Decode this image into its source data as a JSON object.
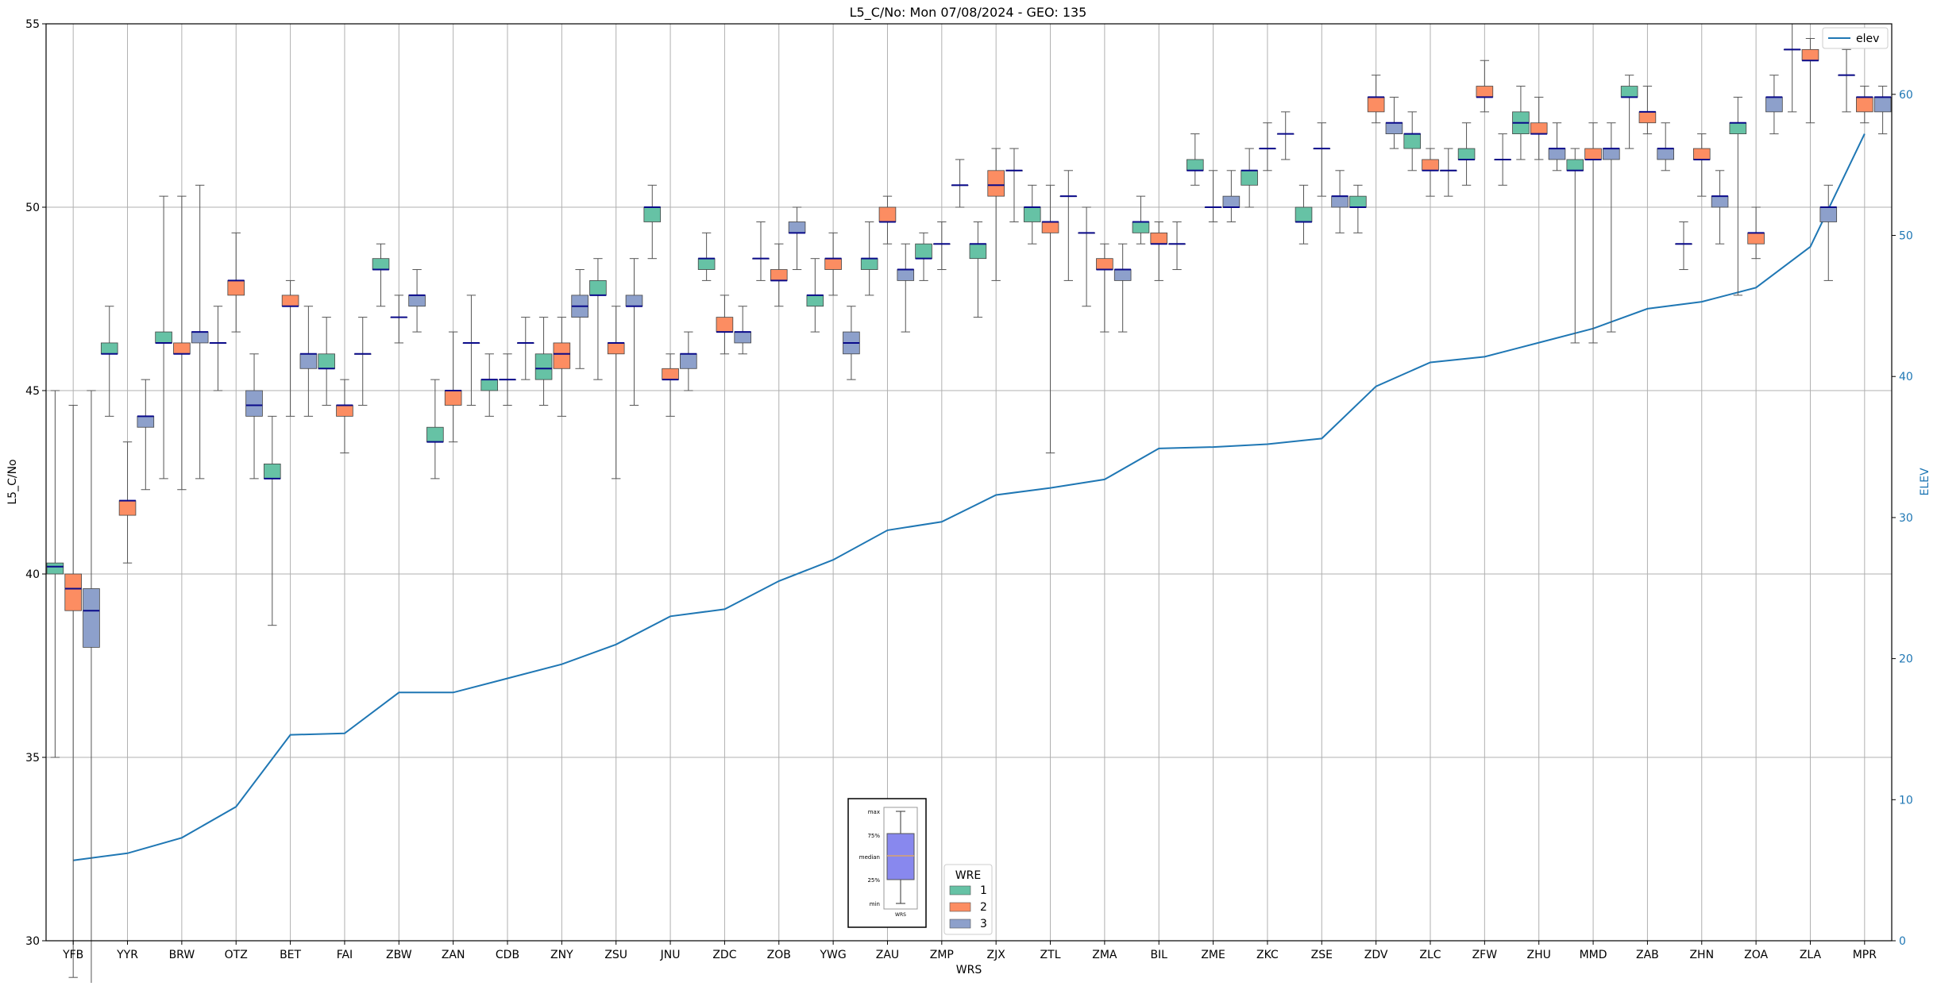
{
  "chart_data": {
    "type": "box",
    "title": "L5_C/No: Mon 07/08/2024 - GEO: 135",
    "xlabel": "WRS",
    "ylabel": "L5_C/No",
    "y2label": "ELEV",
    "ylim": [
      30,
      55
    ],
    "y2lim": [
      0,
      65
    ],
    "yticks": [
      30,
      35,
      40,
      45,
      50,
      55
    ],
    "y2ticks": [
      0,
      10,
      20,
      30,
      40,
      50,
      60
    ],
    "grid": true,
    "categories": [
      "YFB",
      "YYR",
      "BRW",
      "OTZ",
      "BET",
      "FAI",
      "ZBW",
      "ZAN",
      "CDB",
      "ZNY",
      "ZSU",
      "JNU",
      "ZDC",
      "ZOB",
      "YWG",
      "ZAU",
      "ZMP",
      "ZJX",
      "ZTL",
      "ZMA",
      "BIL",
      "ZME",
      "ZKC",
      "ZSE",
      "ZDV",
      "ZLC",
      "ZFW",
      "ZHU",
      "MMD",
      "ZAB",
      "ZHN",
      "ZOA",
      "ZLA",
      "MPR"
    ],
    "box_stats_order": [
      "min",
      "q1",
      "median",
      "q3",
      "max"
    ],
    "series": [
      {
        "name": "1",
        "color": "#66c2a5",
        "boxes": [
          [
            35.0,
            40.0,
            40.2,
            40.3,
            45.0
          ],
          [
            44.3,
            46.0,
            46.0,
            46.3,
            47.3
          ],
          [
            42.6,
            46.3,
            46.3,
            46.6,
            50.3
          ],
          [
            45.0,
            46.3,
            46.3,
            46.3,
            47.3
          ],
          [
            38.6,
            42.6,
            42.6,
            43.0,
            44.3
          ],
          [
            44.6,
            45.6,
            45.6,
            46.0,
            47.0
          ],
          [
            47.3,
            48.3,
            48.3,
            48.6,
            49.0
          ],
          [
            42.6,
            43.6,
            43.6,
            44.0,
            45.3
          ],
          [
            44.3,
            45.0,
            45.3,
            45.3,
            46.0
          ],
          [
            44.6,
            45.3,
            45.6,
            46.0,
            47.0
          ],
          [
            45.3,
            47.6,
            47.6,
            48.0,
            48.6
          ],
          [
            48.6,
            49.6,
            50.0,
            50.0,
            50.6
          ],
          [
            48.0,
            48.3,
            48.6,
            48.6,
            49.3
          ],
          [
            48.0,
            48.6,
            48.6,
            48.6,
            49.6
          ],
          [
            46.6,
            47.3,
            47.6,
            47.6,
            48.6
          ],
          [
            47.6,
            48.3,
            48.6,
            48.6,
            49.6
          ],
          [
            48.0,
            48.6,
            48.6,
            49.0,
            49.3
          ],
          [
            47.0,
            48.6,
            49.0,
            49.0,
            49.6
          ],
          [
            49.0,
            49.6,
            50.0,
            50.0,
            50.6
          ],
          [
            47.3,
            49.3,
            49.3,
            49.3,
            50.0
          ],
          [
            49.0,
            49.3,
            49.6,
            49.6,
            50.3
          ],
          [
            50.6,
            51.0,
            51.0,
            51.3,
            52.0
          ],
          [
            50.0,
            50.6,
            51.0,
            51.0,
            51.6
          ],
          [
            49.0,
            49.6,
            49.6,
            50.0,
            50.6
          ],
          [
            49.3,
            50.0,
            50.0,
            50.3,
            50.6
          ],
          [
            51.0,
            51.6,
            52.0,
            52.0,
            52.6
          ],
          [
            50.6,
            51.3,
            51.3,
            51.6,
            52.3
          ],
          [
            51.3,
            52.0,
            52.3,
            52.6,
            53.3
          ],
          [
            46.3,
            51.0,
            51.0,
            51.3,
            51.6
          ],
          [
            51.6,
            53.0,
            53.0,
            53.3,
            53.6
          ],
          [
            48.3,
            49.0,
            49.0,
            49.0,
            49.6
          ],
          [
            47.6,
            52.0,
            52.3,
            52.3,
            53.0
          ],
          [
            52.6,
            54.3,
            54.3,
            54.3,
            55.0
          ],
          [
            52.6,
            53.6,
            53.6,
            53.6,
            54.3
          ]
        ]
      },
      {
        "name": "2",
        "color": "#fc8d62",
        "boxes": [
          [
            29.0,
            39.0,
            39.6,
            40.0,
            44.6
          ],
          [
            40.3,
            41.6,
            42.0,
            42.0,
            43.6
          ],
          [
            42.3,
            46.0,
            46.0,
            46.3,
            50.3
          ],
          [
            46.6,
            47.6,
            48.0,
            48.0,
            49.3
          ],
          [
            44.3,
            47.3,
            47.3,
            47.6,
            48.0
          ],
          [
            43.3,
            44.3,
            44.6,
            44.6,
            45.3
          ],
          [
            46.3,
            47.0,
            47.0,
            47.0,
            47.6
          ],
          [
            43.6,
            44.6,
            45.0,
            45.0,
            46.6
          ],
          [
            44.6,
            45.3,
            45.3,
            45.3,
            46.0
          ],
          [
            44.3,
            45.6,
            46.0,
            46.3,
            47.0
          ],
          [
            42.6,
            46.0,
            46.3,
            46.3,
            47.3
          ],
          [
            44.3,
            45.3,
            45.3,
            45.6,
            46.0
          ],
          [
            46.0,
            46.6,
            46.6,
            47.0,
            47.6
          ],
          [
            47.3,
            48.0,
            48.0,
            48.3,
            49.0
          ],
          [
            47.6,
            48.3,
            48.6,
            48.6,
            49.3
          ],
          [
            49.0,
            49.6,
            49.6,
            50.0,
            50.3
          ],
          [
            48.3,
            49.0,
            49.0,
            49.0,
            49.6
          ],
          [
            48.0,
            50.3,
            50.6,
            51.0,
            51.6
          ],
          [
            43.3,
            49.3,
            49.6,
            49.6,
            50.6
          ],
          [
            46.6,
            48.3,
            48.3,
            48.6,
            49.0
          ],
          [
            48.0,
            49.0,
            49.0,
            49.3,
            49.6
          ],
          [
            49.6,
            50.0,
            50.0,
            50.0,
            51.0
          ],
          [
            51.0,
            51.6,
            51.6,
            51.6,
            52.3
          ],
          [
            50.3,
            51.6,
            51.6,
            51.6,
            52.3
          ],
          [
            52.3,
            52.6,
            53.0,
            53.0,
            53.6
          ],
          [
            50.3,
            51.0,
            51.0,
            51.3,
            51.6
          ],
          [
            52.6,
            53.0,
            53.0,
            53.3,
            54.0
          ],
          [
            51.3,
            52.0,
            52.0,
            52.3,
            53.0
          ],
          [
            46.3,
            51.3,
            51.3,
            51.6,
            52.3
          ],
          [
            52.0,
            52.3,
            52.6,
            52.6,
            53.3
          ],
          [
            50.3,
            51.3,
            51.3,
            51.6,
            52.0
          ],
          [
            48.6,
            49.0,
            49.3,
            49.3,
            50.0
          ],
          [
            52.3,
            54.0,
            54.0,
            54.3,
            54.6
          ],
          [
            52.3,
            52.6,
            53.0,
            53.0,
            53.3
          ]
        ]
      },
      {
        "name": "3",
        "color": "#8da0cb",
        "boxes": [
          [
            28.6,
            38.0,
            39.0,
            39.6,
            45.0
          ],
          [
            42.3,
            44.0,
            44.3,
            44.3,
            45.3
          ],
          [
            42.6,
            46.3,
            46.6,
            46.6,
            50.6
          ],
          [
            42.6,
            44.3,
            44.6,
            45.0,
            46.0
          ],
          [
            44.3,
            45.6,
            46.0,
            46.0,
            47.3
          ],
          [
            44.6,
            46.0,
            46.0,
            46.0,
            47.0
          ],
          [
            46.6,
            47.3,
            47.6,
            47.6,
            48.3
          ],
          [
            44.6,
            46.3,
            46.3,
            46.3,
            47.6
          ],
          [
            45.3,
            46.3,
            46.3,
            46.3,
            47.0
          ],
          [
            45.6,
            47.0,
            47.3,
            47.6,
            48.3
          ],
          [
            44.6,
            47.3,
            47.3,
            47.6,
            48.6
          ],
          [
            45.0,
            45.6,
            46.0,
            46.0,
            46.6
          ],
          [
            46.0,
            46.3,
            46.6,
            46.6,
            47.3
          ],
          [
            48.3,
            49.3,
            49.3,
            49.6,
            50.0
          ],
          [
            45.3,
            46.0,
            46.3,
            46.6,
            47.3
          ],
          [
            46.6,
            48.0,
            48.3,
            48.3,
            49.0
          ],
          [
            50.0,
            50.6,
            50.6,
            50.6,
            51.3
          ],
          [
            49.6,
            51.0,
            51.0,
            51.0,
            51.6
          ],
          [
            48.0,
            50.3,
            50.3,
            50.3,
            51.0
          ],
          [
            46.6,
            48.0,
            48.3,
            48.3,
            49.0
          ],
          [
            48.3,
            49.0,
            49.0,
            49.0,
            49.6
          ],
          [
            49.6,
            50.0,
            50.0,
            50.3,
            51.0
          ],
          [
            51.3,
            52.0,
            52.0,
            52.0,
            52.6
          ],
          [
            49.3,
            50.0,
            50.3,
            50.3,
            51.0
          ],
          [
            51.6,
            52.0,
            52.3,
            52.3,
            53.0
          ],
          [
            50.3,
            51.0,
            51.0,
            51.0,
            51.6
          ],
          [
            50.6,
            51.3,
            51.3,
            51.3,
            52.0
          ],
          [
            51.0,
            51.3,
            51.6,
            51.6,
            52.3
          ],
          [
            46.6,
            51.3,
            51.6,
            51.6,
            52.3
          ],
          [
            51.0,
            51.3,
            51.6,
            51.6,
            52.3
          ],
          [
            49.0,
            50.0,
            50.3,
            50.3,
            51.0
          ],
          [
            52.0,
            52.6,
            53.0,
            53.0,
            53.6
          ],
          [
            48.0,
            49.6,
            50.0,
            50.0,
            50.6
          ],
          [
            52.0,
            52.6,
            53.0,
            53.0,
            53.3
          ]
        ]
      }
    ],
    "elev": {
      "name": "elev",
      "color": "#1f77b4",
      "values": [
        5.7,
        6.2,
        7.3,
        9.5,
        14.6,
        14.7,
        17.6,
        17.6,
        18.6,
        19.6,
        21.0,
        23.0,
        23.5,
        25.5,
        27.0,
        29.1,
        29.7,
        31.6,
        32.1,
        32.7,
        34.9,
        35.0,
        35.2,
        35.6,
        39.3,
        41.0,
        41.4,
        42.4,
        43.4,
        44.8,
        45.3,
        46.3,
        49.2,
        57.2
      ]
    },
    "legend_location": "bottom-center",
    "legend": {
      "title": "WRE",
      "labels": [
        "1",
        "2",
        "3"
      ]
    },
    "elev_legend_location": "top-right",
    "inset_key": {
      "labels": [
        "max",
        "75%",
        "median",
        "25%",
        "min"
      ],
      "xlabel": "WRS"
    }
  }
}
